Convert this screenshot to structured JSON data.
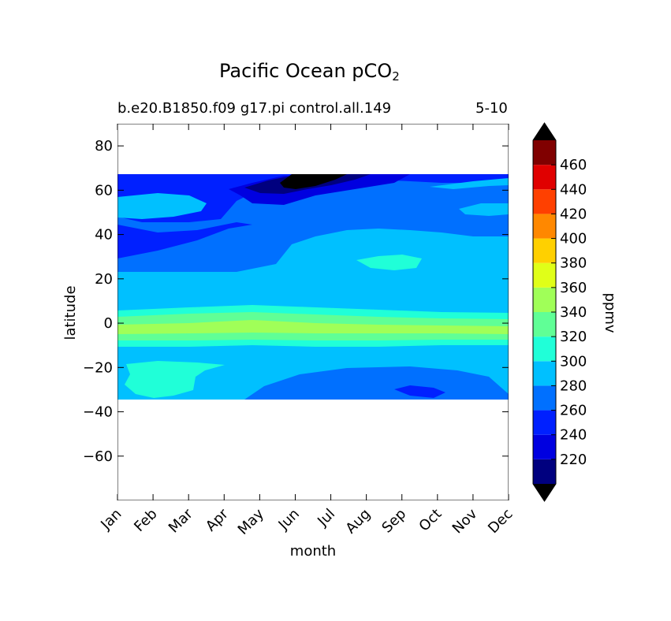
{
  "chart_data": {
    "type": "contour",
    "title_prefix": "Pacific Ocean pCO",
    "title_subscript": "2",
    "subtitle_left": "b.e20.B1850.f09 g17.pi control.all.149",
    "subtitle_right": "5-10",
    "xlabel": "month",
    "ylabel": "latitude",
    "x_categories": [
      "Jan",
      "Feb",
      "Mar",
      "Apr",
      "May",
      "Jun",
      "Jul",
      "Aug",
      "Sep",
      "Oct",
      "Nov",
      "Dec"
    ],
    "yticks": [
      -60,
      -40,
      -20,
      0,
      20,
      40,
      60,
      80
    ],
    "ytick_labels": [
      "−60",
      "−40",
      "−20",
      "0",
      "20",
      "40",
      "60",
      "80"
    ],
    "ylim": [
      -80,
      90
    ],
    "data_lat_range": [
      -34,
      67
    ],
    "colorbar": {
      "label": "ppmv",
      "levels": [
        200,
        220,
        240,
        260,
        280,
        300,
        320,
        340,
        360,
        380,
        400,
        420,
        440,
        460,
        480
      ],
      "tick_labels": [
        "220",
        "240",
        "260",
        "280",
        "300",
        "320",
        "340",
        "360",
        "380",
        "400",
        "420",
        "440",
        "460"
      ],
      "colors": [
        "#00007f",
        "#0000e0",
        "#0020ff",
        "#0070ff",
        "#00c0ff",
        "#20ffd8",
        "#60ff96",
        "#a0ff58",
        "#e0ff18",
        "#ffd000",
        "#ff8800",
        "#ff4000",
        "#e00000",
        "#800000"
      ],
      "under_color": "#000000",
      "over_color": "#000000"
    },
    "description_regions": [
      {
        "lat_band": [
          55,
          67
        ],
        "months": [
          "May",
          "Jul"
        ],
        "level": "200-220"
      },
      {
        "lat_band": [
          -5,
          5
        ],
        "months": [
          "Jan",
          "Dec"
        ],
        "level": "320-360"
      },
      {
        "lat_band": [
          25,
          31
        ],
        "months": [
          "Aug",
          "Sep"
        ],
        "level": "300-320"
      },
      {
        "lat_band": [
          -34,
          -17
        ],
        "months": [
          "Jan",
          "Mar"
        ],
        "level": "300-320"
      }
    ]
  }
}
